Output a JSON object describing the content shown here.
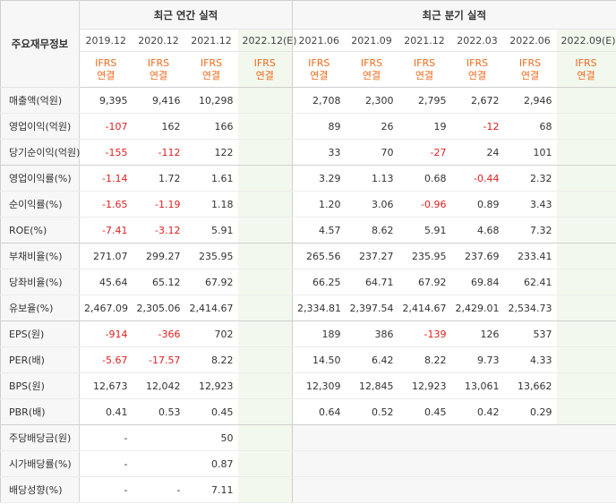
{
  "table": {
    "row_header_title": "주요재무정보",
    "annual_title": "최근 연간 실적",
    "quarter_title": "최근 분기 실적",
    "annual_periods": [
      "2019.12",
      "2020.12",
      "2021.12",
      "2022.12(E)"
    ],
    "quarter_periods": [
      "2021.06",
      "2021.09",
      "2021.12",
      "2022.03",
      "2022.06",
      "2022.09(E)"
    ],
    "ifrs_label": "IFRS",
    "consolidated_label": "연결",
    "rows": [
      {
        "label": "매출액(억원)",
        "annual": [
          "9,395",
          "9,416",
          "10,298",
          ""
        ],
        "quarter": [
          "2,708",
          "2,300",
          "2,795",
          "2,672",
          "2,946",
          ""
        ]
      },
      {
        "label": "영업이익(억원)",
        "annual": [
          "-107",
          "162",
          "166",
          ""
        ],
        "quarter": [
          "89",
          "26",
          "19",
          "-12",
          "68",
          ""
        ]
      },
      {
        "label": "당기순이익(억원)",
        "annual": [
          "-155",
          "-112",
          "122",
          ""
        ],
        "quarter": [
          "33",
          "70",
          "-27",
          "24",
          "101",
          ""
        ]
      },
      {
        "label": "영업이익률(%)",
        "annual": [
          "-1.14",
          "1.72",
          "1.61",
          ""
        ],
        "quarter": [
          "3.29",
          "1.13",
          "0.68",
          "-0.44",
          "2.32",
          ""
        ]
      },
      {
        "label": "순이익률(%)",
        "annual": [
          "-1.65",
          "-1.19",
          "1.18",
          ""
        ],
        "quarter": [
          "1.20",
          "3.06",
          "-0.96",
          "0.89",
          "3.43",
          ""
        ]
      },
      {
        "label": "ROE(%)",
        "annual": [
          "-7.41",
          "-3.12",
          "5.91",
          ""
        ],
        "quarter": [
          "4.57",
          "8.62",
          "5.91",
          "4.68",
          "7.32",
          ""
        ]
      },
      {
        "label": "부채비율(%)",
        "annual": [
          "271.07",
          "299.27",
          "235.95",
          ""
        ],
        "quarter": [
          "265.56",
          "237.27",
          "235.95",
          "237.69",
          "233.41",
          ""
        ]
      },
      {
        "label": "당좌비율(%)",
        "annual": [
          "45.64",
          "65.12",
          "67.92",
          ""
        ],
        "quarter": [
          "66.25",
          "64.71",
          "67.92",
          "69.84",
          "62.41",
          ""
        ]
      },
      {
        "label": "유보율(%)",
        "annual": [
          "2,467.09",
          "2,305.06",
          "2,414.67",
          ""
        ],
        "quarter": [
          "2,334.81",
          "2,397.54",
          "2,414.67",
          "2,429.01",
          "2,534.73",
          ""
        ]
      },
      {
        "label": "EPS(원)",
        "annual": [
          "-914",
          "-366",
          "702",
          ""
        ],
        "quarter": [
          "189",
          "386",
          "-139",
          "126",
          "537",
          ""
        ]
      },
      {
        "label": "PER(배)",
        "annual": [
          "-5.67",
          "-17.57",
          "8.22",
          ""
        ],
        "quarter": [
          "14.50",
          "6.42",
          "8.22",
          "9.73",
          "4.33",
          ""
        ]
      },
      {
        "label": "BPS(원)",
        "annual": [
          "12,673",
          "12,042",
          "12,923",
          ""
        ],
        "quarter": [
          "12,309",
          "12,845",
          "12,923",
          "13,061",
          "13,662",
          ""
        ]
      },
      {
        "label": "PBR(배)",
        "annual": [
          "0.41",
          "0.53",
          "0.45",
          ""
        ],
        "quarter": [
          "0.64",
          "0.52",
          "0.45",
          "0.42",
          "0.29",
          ""
        ]
      },
      {
        "label": "주당배당금(원)",
        "annual": [
          "-",
          "",
          "50",
          ""
        ],
        "quarter": [
          "",
          "",
          "",
          "",
          "",
          ""
        ]
      },
      {
        "label": "시가배당률(%)",
        "annual": [
          "-",
          "",
          "0.87",
          ""
        ],
        "quarter": [
          "",
          "",
          "",
          "",
          "",
          ""
        ]
      },
      {
        "label": "배당성향(%)",
        "annual": [
          "-",
          "-",
          "7.11",
          ""
        ],
        "quarter": [
          "",
          "",
          "",
          "",
          "",
          ""
        ]
      }
    ]
  },
  "colors": {
    "negative": "#e02020",
    "ifrs": "#f06a1c",
    "estimate_bg": "#f2f8ee",
    "header_bg": "#f7f7f7"
  }
}
